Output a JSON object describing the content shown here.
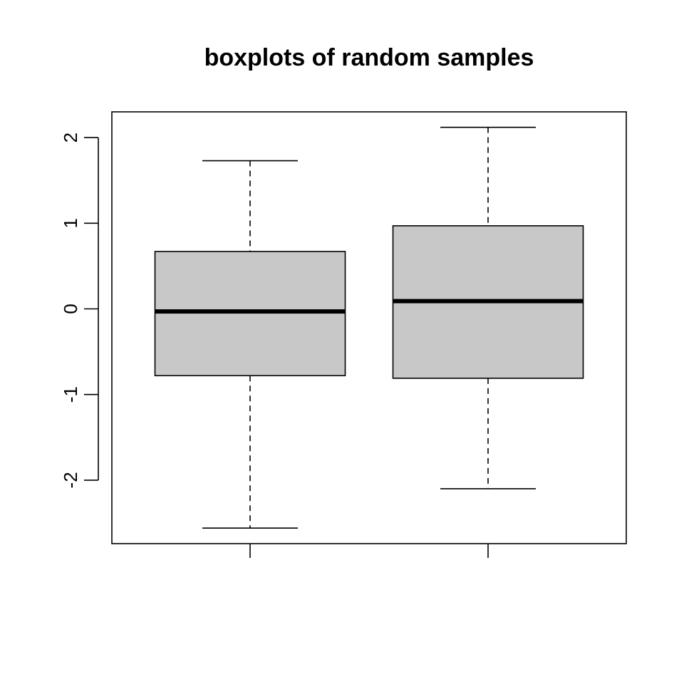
{
  "chart_data": {
    "type": "boxplot",
    "title": "boxplots of random samples",
    "xlabel": "",
    "ylabel": "",
    "ylim": [
      -2.65,
      2.38
    ],
    "yticks": [
      -2,
      -1,
      0,
      1,
      2
    ],
    "ytick_labels": [
      "-2",
      "-1",
      "0",
      "1",
      "2"
    ],
    "grid": false,
    "box_fill": "#c8c8c8",
    "boxes": [
      {
        "lower_whisker": -2.56,
        "q1": -0.78,
        "median": -0.03,
        "q3": 0.67,
        "upper_whisker": 1.73
      },
      {
        "lower_whisker": -2.1,
        "q1": -0.81,
        "median": 0.09,
        "q3": 0.97,
        "upper_whisker": 2.12
      }
    ]
  }
}
